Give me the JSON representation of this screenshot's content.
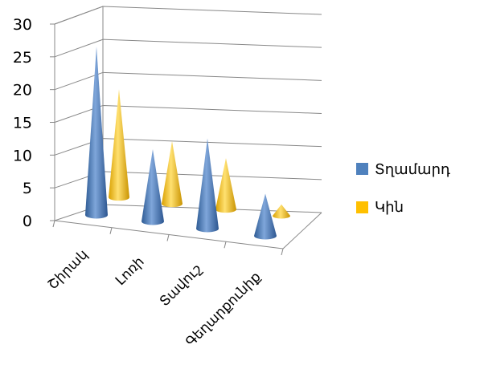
{
  "chart_data": {
    "type": "bar",
    "shape": "3d-cone",
    "categories": [
      "Շիրակ",
      "Լոռի",
      "Տավուշ",
      "Գեղարքունիք"
    ],
    "series": [
      {
        "name": "Տղամարդ",
        "values": [
          28,
          12,
          15,
          7
        ],
        "color": "#4F81BD"
      },
      {
        "name": "Կին",
        "values": [
          19,
          11,
          9,
          2
        ],
        "color": "#FFC000"
      }
    ],
    "ylim": [
      0,
      30
    ],
    "yticks": [
      "0",
      "5",
      "10",
      "15",
      "20",
      "25",
      "30"
    ],
    "grid": true,
    "legend_position": "right"
  }
}
